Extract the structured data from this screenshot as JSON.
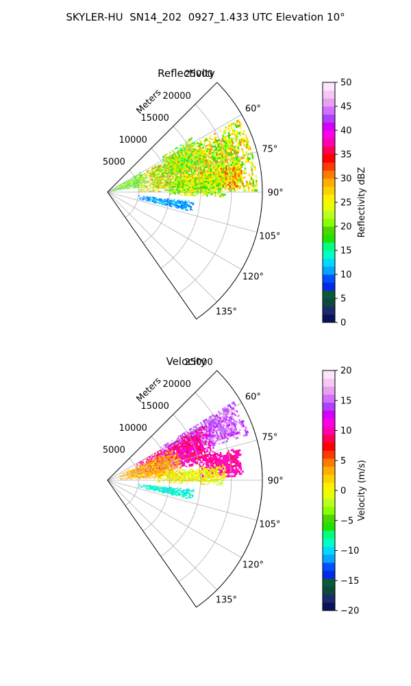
{
  "figure": {
    "suptitle": "SKYLER-HU  SN14_202  0927_1.433 UTC Elevation 10°"
  },
  "chart_data": [
    {
      "type": "heatmap",
      "projection": "polar-sector",
      "title": "Reflectivity",
      "radial_label": "Meters",
      "radial_ticks": [
        5000,
        10000,
        15000,
        20000,
        25000
      ],
      "radial_tick_labels": [
        "5000",
        "10000",
        "15000",
        "20000",
        "25000"
      ],
      "rlim": [
        0,
        25000
      ],
      "azimuth_ticks": [
        60,
        75,
        90,
        105,
        120,
        135
      ],
      "azimuth_tick_labels": [
        "60°",
        "75°",
        "90°",
        "105°",
        "120°",
        "135°"
      ],
      "azimuth_range_deg": [
        45,
        145
      ],
      "grid": true,
      "colorbar": {
        "label": "Reflectivity dBZ",
        "min": 0,
        "max": 50,
        "ticks": [
          0,
          5,
          10,
          15,
          20,
          25,
          30,
          35,
          40,
          45,
          50
        ],
        "tick_labels": [
          "0",
          "5",
          "10",
          "15",
          "20",
          "25",
          "30",
          "35",
          "40",
          "45",
          "50"
        ],
        "colors": [
          "#08145a",
          "#1a2a6a",
          "#0b4a3a",
          "#0a5a3a",
          "#002be8",
          "#0050ff",
          "#00a6ff",
          "#00d8ff",
          "#00ffc0",
          "#00ff80",
          "#22e000",
          "#4bd800",
          "#8aff00",
          "#b8ff20",
          "#e8ff00",
          "#fff000",
          "#ffd000",
          "#ffae00",
          "#ff7a00",
          "#ff3a00",
          "#ff0000",
          "#ff0050",
          "#ff00b0",
          "#ff00e8",
          "#d400ff",
          "#b040ff",
          "#d070ff",
          "#e8a0f0",
          "#f4c8f4",
          "#fce6fc"
        ]
      },
      "echo_regions": [
        {
          "az_range": [
            61,
            89
          ],
          "r_range": [
            5000,
            24000
          ],
          "value_range": [
            16,
            34
          ],
          "typical": 24
        },
        {
          "az_range": [
            57,
            75
          ],
          "r_range": [
            10000,
            16000
          ],
          "value_range": [
            16,
            34
          ],
          "typical": 22
        },
        {
          "az_range": [
            78,
            88
          ],
          "r_range": [
            15000,
            22000
          ],
          "value_range": [
            22,
            35
          ],
          "typical": 28
        },
        {
          "az_range": [
            80,
            92
          ],
          "r_range": [
            10000,
            19000
          ],
          "value_range": [
            16,
            30
          ],
          "typical": 22
        },
        {
          "az_range": [
            58,
            82
          ],
          "r_range": [
            0,
            6000
          ],
          "value_range": [
            12,
            26
          ],
          "typical": 20
        },
        {
          "az_range": [
            96,
            103
          ],
          "r_range": [
            5000,
            14000
          ],
          "value_range": [
            8,
            14
          ],
          "typical": 11
        }
      ]
    },
    {
      "type": "heatmap",
      "projection": "polar-sector",
      "title": "Velocity",
      "radial_label": "Meters",
      "radial_ticks": [
        5000,
        10000,
        15000,
        20000,
        25000
      ],
      "radial_tick_labels": [
        "5000",
        "10000",
        "15000",
        "20000",
        "25000"
      ],
      "rlim": [
        0,
        25000
      ],
      "azimuth_ticks": [
        60,
        75,
        90,
        105,
        120,
        135
      ],
      "azimuth_tick_labels": [
        "60°",
        "75°",
        "90°",
        "105°",
        "120°",
        "135°"
      ],
      "azimuth_range_deg": [
        45,
        145
      ],
      "grid": true,
      "colorbar": {
        "label": "Velocity (m/s)",
        "min": -20,
        "max": 20,
        "ticks": [
          -20,
          -15,
          -10,
          -5,
          0,
          5,
          10,
          15,
          20
        ],
        "tick_labels": [
          "−20",
          "−15",
          "−10",
          "−5",
          "0",
          "5",
          "10",
          "15",
          "20"
        ],
        "colors": [
          "#08145a",
          "#1a2a6a",
          "#0b4a3a",
          "#0a5a3a",
          "#002be8",
          "#0050ff",
          "#00a6ff",
          "#00d8ff",
          "#00ffc0",
          "#00ff80",
          "#22e000",
          "#4bd800",
          "#8aff00",
          "#b8ff20",
          "#e8ff00",
          "#fff000",
          "#ffd000",
          "#ffae00",
          "#ff7a00",
          "#ff3a00",
          "#ff0000",
          "#ff0050",
          "#ff00b0",
          "#ff00e8",
          "#d400ff",
          "#b040ff",
          "#d070ff",
          "#e8a0f0",
          "#f4c8f4",
          "#fce6fc"
        ]
      },
      "echo_regions": [
        {
          "az_range": [
            58,
            72
          ],
          "r_range": [
            10000,
            24000
          ],
          "value_range": [
            12,
            18
          ],
          "typical": 15
        },
        {
          "az_range": [
            60,
            80
          ],
          "r_range": [
            5000,
            18000
          ],
          "value_range": [
            6,
            12
          ],
          "typical": 10
        },
        {
          "az_range": [
            76,
            88
          ],
          "r_range": [
            15000,
            22000
          ],
          "value_range": [
            8,
            12
          ],
          "typical": 10
        },
        {
          "az_range": [
            64,
            88
          ],
          "r_range": [
            2000,
            12000
          ],
          "value_range": [
            0,
            6
          ],
          "typical": 3
        },
        {
          "az_range": [
            82,
            92
          ],
          "r_range": [
            8000,
            19000
          ],
          "value_range": [
            -3,
            3
          ],
          "typical": 0
        },
        {
          "az_range": [
            96,
            103
          ],
          "r_range": [
            5000,
            14000
          ],
          "value_range": [
            -11,
            -7
          ],
          "typical": -9
        }
      ]
    }
  ]
}
